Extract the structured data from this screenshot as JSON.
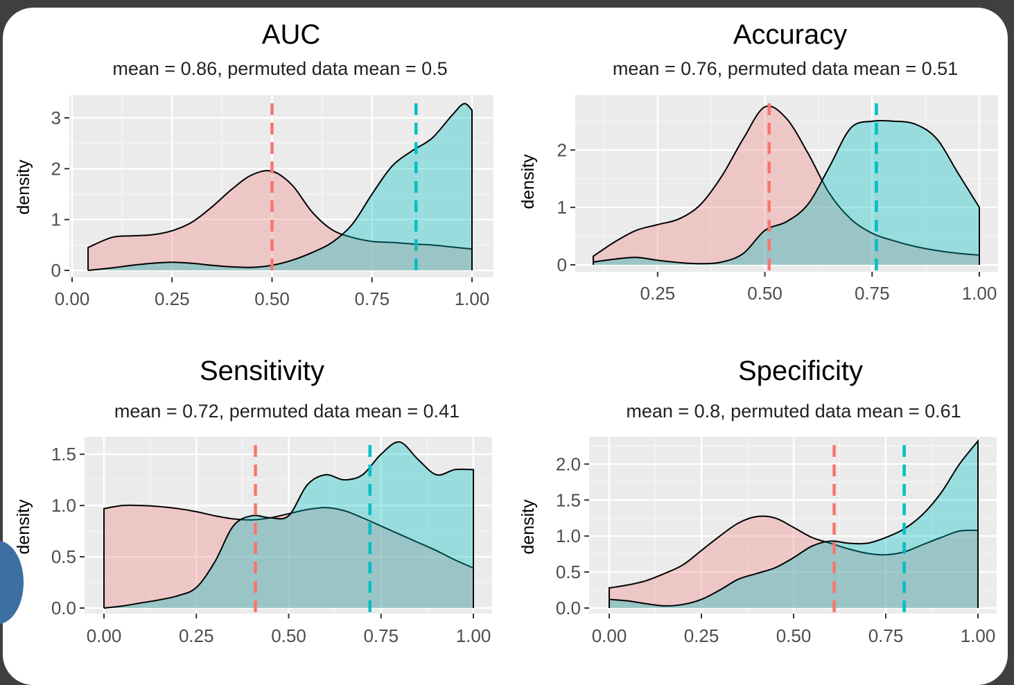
{
  "colors": {
    "background": "#3f3f3f",
    "card": "#ffffff",
    "panel": "#ebebeb",
    "grid": "#ffffff",
    "permuted_fill": "#f08080",
    "actual_fill": "#00bfc4",
    "permuted_line": "#f8766d",
    "actual_line": "#00bfc4",
    "accent_shape": "#3d6fa3"
  },
  "chart_data": [
    {
      "type": "area",
      "title": "AUC",
      "subtitle": "mean = 0.86, permuted data mean = 0.5",
      "xlabel": "",
      "ylabel": "density",
      "xlim": [
        0.0,
        1.0
      ],
      "ylim": [
        0.0,
        3.3
      ],
      "xticks": [
        0.0,
        0.25,
        0.5,
        0.75,
        1.0
      ],
      "xtick_labels": [
        "0.00",
        "0.25",
        "0.50",
        "0.75",
        "1.00"
      ],
      "yticks": [
        0,
        1,
        2,
        3
      ],
      "ytick_labels": [
        "0",
        "1",
        "2",
        "3"
      ],
      "grid": true,
      "series": [
        {
          "role": "permuted",
          "x": [
            0.04,
            0.1,
            0.15,
            0.2,
            0.25,
            0.3,
            0.35,
            0.4,
            0.45,
            0.5,
            0.55,
            0.6,
            0.65,
            0.7,
            0.75,
            0.8,
            0.85,
            0.9,
            0.95,
            1.0
          ],
          "y": [
            0.45,
            0.65,
            0.68,
            0.7,
            0.78,
            0.95,
            1.25,
            1.6,
            1.88,
            1.95,
            1.68,
            1.15,
            0.8,
            0.65,
            0.57,
            0.55,
            0.52,
            0.5,
            0.46,
            0.42
          ]
        },
        {
          "role": "actual",
          "x": [
            0.04,
            0.1,
            0.15,
            0.2,
            0.25,
            0.3,
            0.35,
            0.4,
            0.45,
            0.5,
            0.55,
            0.6,
            0.65,
            0.7,
            0.75,
            0.8,
            0.85,
            0.9,
            0.95,
            0.98,
            1.0
          ],
          "y": [
            0.0,
            0.05,
            0.1,
            0.14,
            0.16,
            0.14,
            0.1,
            0.07,
            0.06,
            0.1,
            0.2,
            0.35,
            0.55,
            0.9,
            1.5,
            2.05,
            2.35,
            2.6,
            3.05,
            3.28,
            3.15
          ]
        }
      ],
      "vlines": [
        {
          "role": "permuted",
          "x": 0.5
        },
        {
          "role": "actual",
          "x": 0.86
        }
      ]
    },
    {
      "type": "area",
      "title": "Accuracy",
      "subtitle": "mean = 0.76, permuted data mean = 0.51",
      "xlabel": "",
      "ylabel": "density",
      "xlim": [
        0.1,
        1.0
      ],
      "ylim": [
        0.0,
        2.8
      ],
      "xticks": [
        0.25,
        0.5,
        0.75,
        1.0
      ],
      "xtick_labels": [
        "0.25",
        "0.50",
        "0.75",
        "1.00"
      ],
      "yticks": [
        0,
        1,
        2
      ],
      "ytick_labels": [
        "0",
        "1",
        "2"
      ],
      "grid": true,
      "series": [
        {
          "role": "permuted",
          "x": [
            0.1,
            0.15,
            0.2,
            0.25,
            0.3,
            0.35,
            0.4,
            0.45,
            0.5,
            0.55,
            0.6,
            0.65,
            0.7,
            0.75,
            0.8,
            0.85,
            0.9,
            0.95,
            1.0
          ],
          "y": [
            0.15,
            0.4,
            0.6,
            0.7,
            0.8,
            1.05,
            1.55,
            2.2,
            2.75,
            2.55,
            1.95,
            1.25,
            0.8,
            0.55,
            0.42,
            0.32,
            0.25,
            0.2,
            0.17
          ]
        },
        {
          "role": "actual",
          "x": [
            0.1,
            0.15,
            0.2,
            0.25,
            0.3,
            0.35,
            0.4,
            0.45,
            0.5,
            0.55,
            0.6,
            0.65,
            0.7,
            0.75,
            0.8,
            0.85,
            0.9,
            0.95,
            1.0
          ],
          "y": [
            0.05,
            0.1,
            0.13,
            0.08,
            0.04,
            0.02,
            0.05,
            0.2,
            0.6,
            0.75,
            1.05,
            1.7,
            2.38,
            2.5,
            2.5,
            2.45,
            2.2,
            1.6,
            1.0
          ]
        }
      ],
      "vlines": [
        {
          "role": "permuted",
          "x": 0.51
        },
        {
          "role": "actual",
          "x": 0.76
        }
      ]
    },
    {
      "type": "area",
      "title": "Sensitivity",
      "subtitle": "mean = 0.72, permuted data mean = 0.41",
      "xlabel": "",
      "ylabel": "density",
      "xlim": [
        0.0,
        1.0
      ],
      "ylim": [
        0.0,
        1.65
      ],
      "xticks": [
        0.0,
        0.25,
        0.5,
        0.75,
        1.0
      ],
      "xtick_labels": [
        "0.00",
        "0.25",
        "0.50",
        "0.75",
        "1.00"
      ],
      "yticks": [
        0.0,
        0.5,
        1.0,
        1.5
      ],
      "ytick_labels": [
        "0.0",
        "0.5",
        "1.0",
        "1.5"
      ],
      "grid": true,
      "series": [
        {
          "role": "permuted",
          "x": [
            0.0,
            0.05,
            0.1,
            0.15,
            0.2,
            0.25,
            0.3,
            0.35,
            0.4,
            0.45,
            0.5,
            0.55,
            0.6,
            0.65,
            0.7,
            0.75,
            0.8,
            0.85,
            0.9,
            0.95,
            1.0
          ],
          "y": [
            0.97,
            1.0,
            1.0,
            0.99,
            0.97,
            0.94,
            0.9,
            0.87,
            0.86,
            0.88,
            0.92,
            0.96,
            0.98,
            0.95,
            0.88,
            0.8,
            0.72,
            0.64,
            0.56,
            0.47,
            0.39
          ]
        },
        {
          "role": "actual",
          "x": [
            0.0,
            0.05,
            0.1,
            0.15,
            0.2,
            0.25,
            0.3,
            0.35,
            0.4,
            0.45,
            0.5,
            0.55,
            0.6,
            0.65,
            0.7,
            0.75,
            0.8,
            0.85,
            0.9,
            0.95,
            1.0
          ],
          "y": [
            0.0,
            0.02,
            0.05,
            0.08,
            0.12,
            0.2,
            0.45,
            0.8,
            0.9,
            0.88,
            0.9,
            1.2,
            1.3,
            1.25,
            1.3,
            1.5,
            1.62,
            1.45,
            1.3,
            1.35,
            1.35
          ]
        }
      ],
      "vlines": [
        {
          "role": "permuted",
          "x": 0.41
        },
        {
          "role": "actual",
          "x": 0.72
        }
      ]
    },
    {
      "type": "area",
      "title": "Specificity",
      "subtitle": "mean = 0.8, permuted data mean = 0.61",
      "xlabel": "",
      "ylabel": "density",
      "xlim": [
        0.0,
        1.0
      ],
      "ylim": [
        0.0,
        2.35
      ],
      "xticks": [
        0.0,
        0.25,
        0.5,
        0.75,
        1.0
      ],
      "xtick_labels": [
        "0.00",
        "0.25",
        "0.50",
        "0.75",
        "1.00"
      ],
      "yticks": [
        0.0,
        0.5,
        1.0,
        1.5,
        2.0
      ],
      "ytick_labels": [
        "0.0",
        "0.5",
        "1.0",
        "1.5",
        "2.0"
      ],
      "grid": true,
      "series": [
        {
          "role": "permuted",
          "x": [
            0.0,
            0.05,
            0.1,
            0.15,
            0.2,
            0.25,
            0.3,
            0.35,
            0.4,
            0.45,
            0.5,
            0.55,
            0.6,
            0.65,
            0.7,
            0.75,
            0.8,
            0.85,
            0.9,
            0.95,
            1.0
          ],
          "y": [
            0.28,
            0.32,
            0.38,
            0.48,
            0.6,
            0.8,
            1.0,
            1.18,
            1.27,
            1.25,
            1.12,
            0.98,
            0.9,
            0.82,
            0.76,
            0.74,
            0.78,
            0.88,
            0.98,
            1.07,
            1.08
          ]
        },
        {
          "role": "actual",
          "x": [
            0.0,
            0.05,
            0.1,
            0.15,
            0.2,
            0.25,
            0.3,
            0.35,
            0.4,
            0.45,
            0.5,
            0.55,
            0.6,
            0.65,
            0.7,
            0.75,
            0.8,
            0.85,
            0.9,
            0.95,
            1.0
          ],
          "y": [
            0.12,
            0.1,
            0.06,
            0.03,
            0.05,
            0.12,
            0.25,
            0.4,
            0.48,
            0.56,
            0.7,
            0.86,
            0.93,
            0.9,
            0.9,
            0.98,
            1.1,
            1.3,
            1.6,
            2.0,
            2.32
          ]
        }
      ],
      "vlines": [
        {
          "role": "permuted",
          "x": 0.61
        },
        {
          "role": "actual",
          "x": 0.8
        }
      ]
    }
  ]
}
